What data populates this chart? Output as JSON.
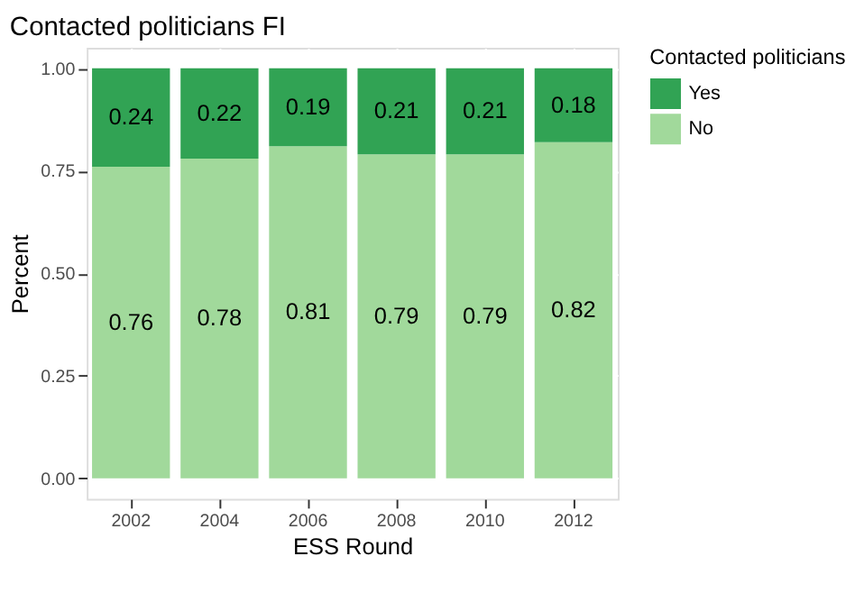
{
  "chart_data": {
    "type": "bar",
    "title": "Contacted politicians FI",
    "xlabel": "ESS Round",
    "ylabel": "Percent",
    "legend_title": "Contacted politicians",
    "categories": [
      "2002",
      "2004",
      "2006",
      "2008",
      "2010",
      "2012"
    ],
    "series": [
      {
        "name": "No",
        "color": "#a1d99b",
        "values": [
          0.76,
          0.78,
          0.81,
          0.79,
          0.79,
          0.82
        ]
      },
      {
        "name": "Yes",
        "color": "#31a354",
        "values": [
          0.24,
          0.22,
          0.19,
          0.21,
          0.21,
          0.18
        ]
      }
    ],
    "stacked": true,
    "data_labels": true,
    "ylim": [
      -0.05,
      1.05
    ],
    "yticks": [
      {
        "value": 0,
        "label": "0.00"
      },
      {
        "value": 0.25,
        "label": "0.25"
      },
      {
        "value": 0.5,
        "label": "0.50"
      },
      {
        "value": 0.75,
        "label": "0.75"
      },
      {
        "value": 1,
        "label": "1.00"
      }
    ],
    "grid": true,
    "legend": "right"
  }
}
